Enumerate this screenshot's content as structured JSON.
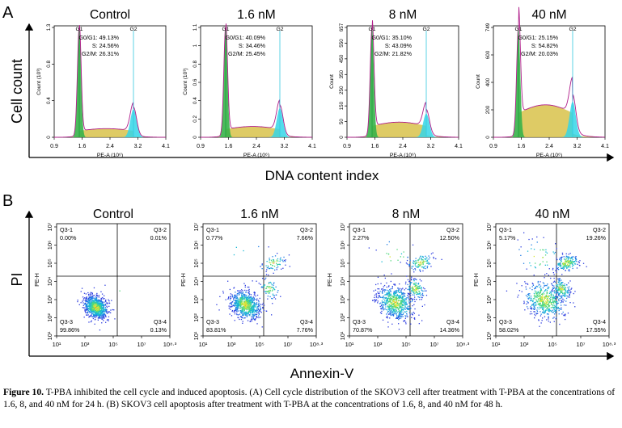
{
  "panel_a": {
    "letter": "A",
    "y_axis_label": "Cell count",
    "x_axis_label": "DNA content index",
    "x_ticks": [
      "0.9",
      "1.6",
      "2.4",
      "3.2",
      "4.1"
    ],
    "x_axis_title": "PE-A (10⁶)",
    "peak_labels": [
      "G1",
      "G2"
    ],
    "plots": [
      {
        "title": "Control",
        "y_axis_title": "Count (10³)",
        "y_ticks": [
          "0",
          "0.4",
          "0.8",
          "1.3"
        ],
        "stats": [
          "G0/G1: 49.13%",
          "S: 24.56%",
          "G2/M: 26.31%"
        ]
      },
      {
        "title": "1.6 nM",
        "y_axis_title": "Count (10³)",
        "y_ticks": [
          "0",
          "0.2",
          "0.4",
          "0.6",
          "0.8",
          "1",
          "1.1"
        ],
        "stats": [
          "G0/G1: 40.09%",
          "S: 34.46%",
          "G2/M: 25.45%"
        ]
      },
      {
        "title": "8 nM",
        "y_axis_title": "Count",
        "y_ticks": [
          "0",
          "50",
          "150",
          "250",
          "350",
          "450",
          "550",
          "657"
        ],
        "stats": [
          "G0/G1: 35.10%",
          "S: 43.09%",
          "G2/M: 21.82%"
        ]
      },
      {
        "title": "40 nM",
        "y_axis_title": "Count",
        "y_ticks": [
          "0",
          "200",
          "400",
          "600",
          "749"
        ],
        "stats": [
          "G0/G1: 25.15%",
          "S: 54.82%",
          "G2/M: 20.03%"
        ]
      }
    ]
  },
  "panel_b": {
    "letter": "B",
    "y_axis_label": "PI",
    "x_axis_label": "Annexin-V",
    "plot_y_title": "PE-H",
    "x_ticks": [
      "10¹",
      "10³",
      "10⁵",
      "10⁷",
      "10⁸·³"
    ],
    "y_ticks": [
      "10¹",
      "10²",
      "10³",
      "10⁴",
      "10⁵",
      "10⁶",
      "10⁷"
    ],
    "plots": [
      {
        "title": "Control",
        "quadrants": [
          [
            "Q3-1",
            "0.00%"
          ],
          [
            "Q3-2",
            "0.01%"
          ],
          [
            "Q3-3",
            "99.86%"
          ],
          [
            "Q3-4",
            "0.13%"
          ]
        ]
      },
      {
        "title": "1.6 nM",
        "quadrants": [
          [
            "Q3-1",
            "0.77%"
          ],
          [
            "Q3-2",
            "7.66%"
          ],
          [
            "Q3-3",
            "83.81%"
          ],
          [
            "Q3-4",
            "7.76%"
          ]
        ]
      },
      {
        "title": "8 nM",
        "quadrants": [
          [
            "Q3-1",
            "2.27%"
          ],
          [
            "Q3-2",
            "12.50%"
          ],
          [
            "Q3-3",
            "70.87%"
          ],
          [
            "Q3-4",
            "14.36%"
          ]
        ]
      },
      {
        "title": "40 nM",
        "quadrants": [
          [
            "Q3-1",
            "5.17%"
          ],
          [
            "Q3-2",
            "19.26%"
          ],
          [
            "Q3-3",
            "58.02%"
          ],
          [
            "Q3-4",
            "17.55%"
          ]
        ]
      }
    ]
  },
  "caption": {
    "label": "Figure 10.",
    "text": " T-PBA inhibited the cell cycle and induced apoptosis. (A) Cell cycle distribution of the SKOV3 cell after treatment with T-PBA at the concentrations of 1.6, 8, and 40 nM for 24 h. (B) SKOV3 cell apoptosis after treatment with T-PBA at the concentrations of 1.6, 8, and 40 nM for 48 h."
  }
}
